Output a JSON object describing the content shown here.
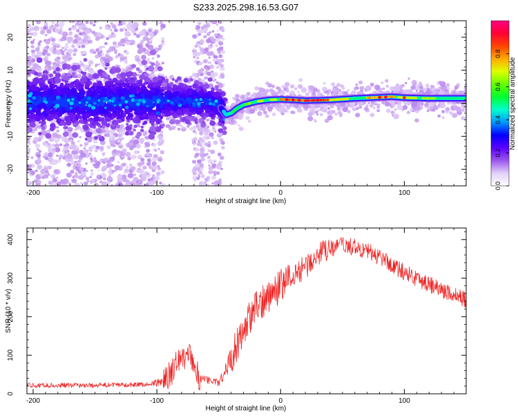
{
  "title": "S233.2025.298.16.53.G07",
  "chart_data": [
    {
      "type": "heatmap",
      "title": "S233.2025.298.16.53.G07",
      "xlabel": "Height of straight line (km)",
      "ylabel": "Frequency (Hz)",
      "xlim": [
        -205,
        150
      ],
      "ylim": [
        -25,
        25
      ],
      "xticks": [
        -200,
        -100,
        0,
        100
      ],
      "yticks": [
        -20,
        -10,
        0,
        10,
        20
      ],
      "colorbar": {
        "label": "Normalized spectral amplitude",
        "ticks": [
          "0.0",
          "0.2",
          "0.4",
          "0.6",
          "0.8"
        ],
        "range": [
          0,
          1
        ],
        "colors": [
          "#ffffff",
          "#c8a8f0",
          "#7a28e8",
          "#4a00ff",
          "#0000ff",
          "#00ccff",
          "#00ff7f",
          "#22ff00",
          "#ccff00",
          "#ffcc00",
          "#ff7700",
          "#ff0000",
          "#ff0080"
        ]
      },
      "ridge": {
        "x": [
          -205,
          -150,
          -100,
          -80,
          -60,
          -50,
          -44,
          -40,
          -35,
          -30,
          -20,
          -10,
          0,
          20,
          40,
          60,
          80,
          90,
          100,
          120,
          150
        ],
        "y": [
          0.5,
          0.5,
          0.5,
          0.8,
          0.3,
          -0.5,
          -3.5,
          -3.0,
          -1.5,
          -0.5,
          0.5,
          1.0,
          1.2,
          0.8,
          1.0,
          1.5,
          1.8,
          2.0,
          1.7,
          1.5,
          1.5
        ]
      }
    },
    {
      "type": "line",
      "xlabel": "Height of straight line (km)",
      "ylabel": "SNR (10 * v/v)",
      "xlim": [
        -205,
        150
      ],
      "ylim": [
        0,
        430
      ],
      "xticks": [
        -200,
        -100,
        0,
        100
      ],
      "yticks": [
        0,
        100,
        200,
        300,
        400
      ],
      "color": "#ee2222",
      "series": [
        {
          "name": "SNR",
          "x": [
            -205,
            -150,
            -105,
            -95,
            -88,
            -80,
            -72,
            -66,
            -58,
            -50,
            -42,
            -35,
            -28,
            -20,
            -10,
            0,
            10,
            20,
            30,
            40,
            50,
            60,
            70,
            80,
            90,
            100,
            110,
            120,
            130,
            140,
            150
          ],
          "y": [
            22,
            22,
            25,
            32,
            55,
            100,
            95,
            40,
            35,
            28,
            80,
            130,
            180,
            220,
            255,
            280,
            305,
            330,
            360,
            375,
            385,
            380,
            370,
            355,
            335,
            315,
            300,
            285,
            270,
            255,
            245
          ]
        }
      ]
    }
  ]
}
